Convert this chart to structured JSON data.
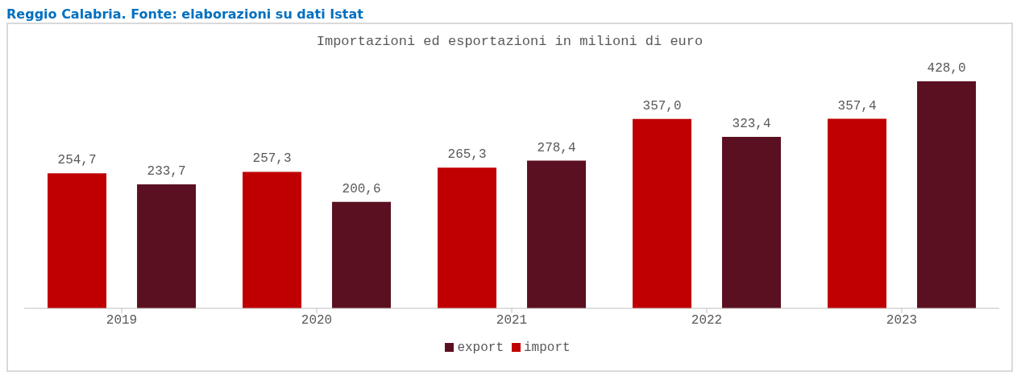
{
  "chart_data": {
    "type": "bar",
    "title": "Importazioni ed esportazioni in milioni di euro",
    "annotations": [
      "Reggio Calabria. Fonte: elaborazioni su dati Istat"
    ],
    "categories": [
      "2019",
      "2020",
      "2021",
      "2022",
      "2023"
    ],
    "series": [
      {
        "name": "import",
        "color": "#c00000",
        "values": [
          254.7,
          257.3,
          265.3,
          357.0,
          357.4
        ],
        "value_labels": [
          "254,7",
          "257,3",
          "265,3",
          "357,0",
          "357,4"
        ]
      },
      {
        "name": "export",
        "color": "#5a1020",
        "values": [
          233.7,
          200.6,
          278.4,
          323.4,
          428.0
        ],
        "value_labels": [
          "233,7",
          "200,6",
          "278,4",
          "323,4",
          "428,0"
        ]
      }
    ],
    "legend": "bottom",
    "grid": false
  }
}
